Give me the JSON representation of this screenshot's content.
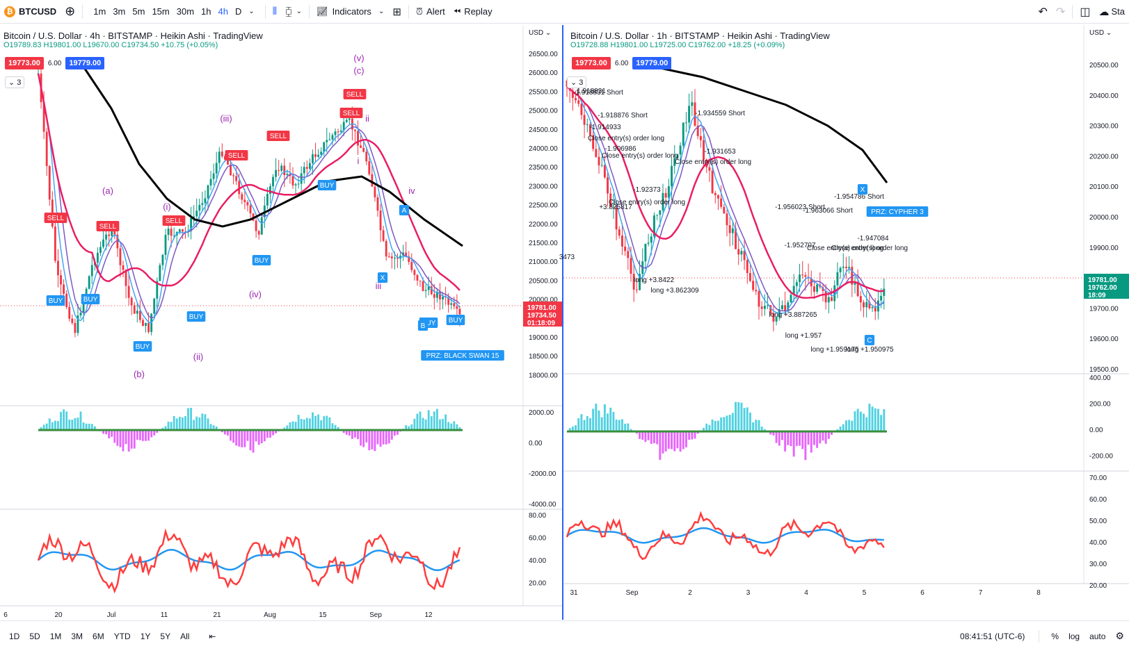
{
  "toolbar": {
    "symbol": "BTCUSD",
    "intervals": [
      "1m",
      "3m",
      "5m",
      "15m",
      "30m",
      "1h",
      "4h",
      "D"
    ],
    "active_interval": "4h",
    "indicators_label": "Indicators",
    "alert_label": "Alert",
    "replay_label": "Replay",
    "right_truncated": "Sta"
  },
  "left_chart": {
    "title": "Bitcoin / U.S. Dollar · 4h · BITSTAMP · Heikin Ashi · TradingView",
    "ohlc": "O19789.83 H19801.00 L19670.00 C19734.50 +10.75 (+0.05%)",
    "bid": "19773.00",
    "spread": "6.00",
    "ask": "19779.00",
    "collapse": "3",
    "currency": "USD",
    "price_ticks": [
      "26500.00",
      "26000.00",
      "25500.00",
      "25000.00",
      "24500.00",
      "24000.00",
      "23500.00",
      "23000.00",
      "22500.00",
      "22000.00",
      "21500.00",
      "21000.00",
      "20500.00",
      "20000.00",
      "19500.00",
      "19000.00",
      "18500.00",
      "18000.00"
    ],
    "last_price_labels": [
      "19781.00",
      "19734.50",
      "01:18:09"
    ],
    "macd_ticks": [
      "2000.00",
      "0.00",
      "-2000.00",
      "-4000.00"
    ],
    "rsi_ticks": [
      "80.00",
      "60.00",
      "40.00",
      "20.00"
    ],
    "time_ticks": [
      "6",
      "20",
      "Jul",
      "11",
      "21",
      "Aug",
      "15",
      "Sep",
      "12"
    ],
    "wave_labels": [
      "(a)",
      "(b)",
      "(i)",
      "(ii)",
      "(iii)",
      "(iv)",
      "(v)",
      "(c)",
      "i",
      "ii",
      "iii",
      "iv"
    ],
    "pattern_labels": [
      "A",
      "B",
      "X"
    ],
    "prz_label": "PRZ: BLACK SWAN 15",
    "buy_label": "BUY",
    "sell_label": "SELL"
  },
  "right_chart": {
    "title": "Bitcoin / U.S. Dollar · 1h · BITSTAMP · Heikin Ashi · TradingView",
    "ohlc": "O19728.88 H19801.00 L19725.00 C19762.00 +18.25 (+0.09%)",
    "bid": "19773.00",
    "spread": "6.00",
    "ask": "19779.00",
    "collapse": "3",
    "currency": "USD",
    "price_ticks": [
      "20500.00",
      "20400.00",
      "20300.00",
      "20200.00",
      "20100.00",
      "20000.00",
      "19900.00",
      "19800.00",
      "19700.00",
      "19600.00",
      "19500.00"
    ],
    "last_price_labels": [
      "19781.00",
      "19762.00",
      "18:09"
    ],
    "macd_ticks": [
      "400.00",
      "200.00",
      "0.00",
      "-200.00"
    ],
    "rsi_ticks": [
      "70.00",
      "60.00",
      "50.00",
      "40.00",
      "30.00",
      "20.00"
    ],
    "time_ticks": [
      "31",
      "Sep",
      "2",
      "3",
      "4",
      "5",
      "6",
      "7",
      "8"
    ],
    "annotations": [
      "-1.918831 Short",
      "-1.918876 Short",
      "-1.914933",
      "Close entry(s) order long",
      "-1.906986",
      "Close entry(s) order long",
      "-1.934559 Short",
      "-1.931653",
      "Close entry(s) order long",
      "-1.92373",
      "Close entry(s) order long",
      "+3.825817",
      "-1.956023 Short",
      "-1.963066 Short",
      "-1.954786 Short",
      "-1.952707",
      "Close entry(s) order long",
      "-1.947084",
      "Close entry(s) order long",
      "long +3.8422",
      "long +3.862309",
      "long +3.887265",
      "long +1.957",
      "long +1.959175",
      "long +1.950975",
      "1.918831",
      "3473"
    ],
    "pattern_labels": [
      "X",
      "C"
    ],
    "prz_label": "PRZ: CYPHER 3"
  },
  "bottom": {
    "ranges": [
      "1D",
      "5D",
      "1M",
      "3M",
      "6M",
      "YTD",
      "1Y",
      "5Y",
      "All"
    ],
    "clock": "08:41:51 (UTC-6)",
    "percent": "%",
    "log": "log",
    "auto": "auto"
  },
  "colors": {
    "accent": "#2962ff",
    "up": "#089981",
    "down": "#f23645",
    "ma_black": "#000000",
    "ma_red": "#e91e63",
    "magenta": "#e040fb",
    "cyan": "#26c6da",
    "rsi_red": "#ff3d3d",
    "rsi_blue": "#2196f3"
  }
}
